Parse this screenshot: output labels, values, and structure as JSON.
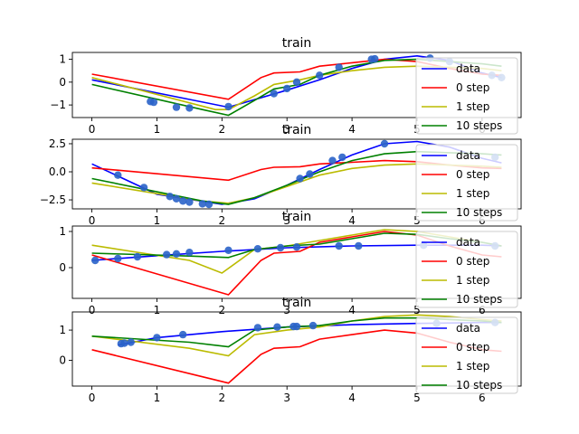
{
  "chart_data": [
    {
      "type": "line",
      "title": "train",
      "ylim": [
        -1.55,
        1.3
      ],
      "yticks": [
        -1,
        0,
        1
      ],
      "xticks": [
        0,
        1,
        2,
        3,
        4,
        5,
        6
      ],
      "xlim": [
        -0.3,
        6.6
      ],
      "legend_position": "right",
      "series": [
        {
          "name": "data",
          "kind": "line",
          "color": "#0000ff",
          "x": [
            0,
            2.1,
            3,
            3.5,
            4,
            4.5,
            5,
            5.5,
            6,
            6.3
          ],
          "y": [
            0.1,
            -1.1,
            -0.35,
            0.1,
            0.6,
            1.0,
            1.15,
            0.95,
            0.4,
            0.2
          ]
        },
        {
          "name": "0 step",
          "kind": "line",
          "color": "#ff0000",
          "x": [
            0,
            2.1,
            2.6,
            2.8,
            3.2,
            3.5,
            4,
            4.5,
            5,
            5.5,
            6,
            6.3
          ],
          "y": [
            0.35,
            -0.75,
            0.2,
            0.4,
            0.45,
            0.7,
            0.85,
            1.0,
            0.9,
            0.6,
            0.35,
            0.3
          ]
        },
        {
          "name": "1 step",
          "kind": "line",
          "color": "#bbbb00",
          "x": [
            0,
            1.9,
            2.1,
            2.5,
            2.8,
            3.2,
            3.5,
            4,
            4.5,
            5,
            5.5,
            6,
            6.3
          ],
          "y": [
            0.2,
            -1.2,
            -1.2,
            -0.6,
            -0.1,
            0.1,
            0.3,
            0.5,
            0.65,
            0.7,
            0.65,
            0.6,
            0.5
          ]
        },
        {
          "name": "10 steps",
          "kind": "line",
          "color": "#008000",
          "x": [
            0,
            1.7,
            2.1,
            2.5,
            2.8,
            3.2,
            3.5,
            4,
            4.5,
            5,
            5.5,
            6,
            6.3
          ],
          "y": [
            -0.1,
            -1.2,
            -1.45,
            -0.8,
            -0.3,
            -0.1,
            0.3,
            0.7,
            0.95,
            1.0,
            0.9,
            0.8,
            0.7
          ]
        },
        {
          "name": "data_points",
          "kind": "scatter",
          "color": "#2a63c9",
          "x": [
            0.9,
            0.95,
            1.3,
            1.5,
            2.1,
            2.8,
            3.0,
            3.15,
            3.5,
            3.8,
            4.3,
            4.35,
            5.2,
            5.5,
            6.15,
            6.3
          ],
          "y": [
            -0.85,
            -0.88,
            -1.1,
            -1.13,
            -1.07,
            -0.5,
            -0.28,
            0.0,
            0.3,
            0.65,
            1.0,
            1.02,
            1.05,
            0.9,
            0.3,
            0.2
          ]
        }
      ]
    },
    {
      "type": "line",
      "title": "train",
      "ylim": [
        -3.3,
        2.9
      ],
      "yticks": [
        -2.5,
        0.0,
        2.5
      ],
      "xticks": [
        0,
        1,
        2,
        3,
        4,
        5,
        6
      ],
      "xlim": [
        -0.3,
        6.6
      ],
      "legend_position": "right",
      "series": [
        {
          "name": "data",
          "kind": "line",
          "color": "#0000ff",
          "x": [
            0,
            1,
            2,
            2.5,
            3,
            3.5,
            4,
            4.5,
            5,
            5.5,
            6,
            6.3
          ],
          "y": [
            0.7,
            -2.0,
            -2.9,
            -2.4,
            -1.2,
            0.2,
            1.5,
            2.5,
            2.7,
            2.2,
            1.2,
            0.8
          ]
        },
        {
          "name": "0 step",
          "kind": "line",
          "color": "#ff0000",
          "x": [
            0,
            2.1,
            2.6,
            2.8,
            3.2,
            3.5,
            4,
            4.5,
            5,
            5.5,
            6,
            6.3
          ],
          "y": [
            0.35,
            -0.75,
            0.2,
            0.4,
            0.45,
            0.7,
            0.85,
            1.0,
            0.9,
            0.6,
            0.35,
            0.3
          ]
        },
        {
          "name": "1 step",
          "kind": "line",
          "color": "#bbbb00",
          "x": [
            0,
            1.7,
            2.1,
            2.5,
            3.0,
            3.5,
            4,
            4.5,
            5,
            5.5,
            6,
            6.3
          ],
          "y": [
            -1.0,
            -2.6,
            -2.8,
            -2.3,
            -1.3,
            -0.3,
            0.3,
            0.6,
            0.7,
            0.6,
            0.5,
            0.4
          ]
        },
        {
          "name": "10 steps",
          "kind": "line",
          "color": "#008000",
          "x": [
            0,
            1.7,
            2.1,
            2.5,
            3.0,
            3.5,
            4,
            4.5,
            5,
            5.5,
            6,
            6.3
          ],
          "y": [
            -0.6,
            -2.6,
            -2.9,
            -2.3,
            -1.2,
            0.0,
            1.0,
            1.6,
            1.8,
            1.7,
            1.6,
            1.5
          ]
        },
        {
          "name": "data_points",
          "kind": "scatter",
          "color": "#2a63c9",
          "x": [
            0.4,
            0.8,
            1.2,
            1.3,
            1.4,
            1.5,
            1.7,
            1.8,
            3.2,
            3.35,
            3.7,
            3.85,
            4.5,
            6.2
          ],
          "y": [
            -0.3,
            -1.4,
            -2.2,
            -2.4,
            -2.6,
            -2.7,
            -2.85,
            -2.9,
            -0.6,
            -0.2,
            1.0,
            1.3,
            2.5,
            1.3
          ]
        }
      ]
    },
    {
      "type": "line",
      "title": "train",
      "ylim": [
        -0.85,
        1.15
      ],
      "yticks": [
        0,
        1
      ],
      "xticks": [
        0,
        1,
        2,
        3,
        4,
        5,
        6
      ],
      "xlim": [
        -0.3,
        6.6
      ],
      "legend_position": "right",
      "series": [
        {
          "name": "data",
          "kind": "line",
          "color": "#0000ff",
          "x": [
            0,
            1,
            2,
            3,
            4,
            5,
            6,
            6.3
          ],
          "y": [
            0.2,
            0.33,
            0.45,
            0.55,
            0.6,
            0.62,
            0.62,
            0.6
          ]
        },
        {
          "name": "0 step",
          "kind": "line",
          "color": "#ff0000",
          "x": [
            0,
            2.1,
            2.6,
            2.8,
            3.2,
            3.5,
            4,
            4.5,
            5,
            5.5,
            6,
            6.3
          ],
          "y": [
            0.35,
            -0.75,
            0.2,
            0.4,
            0.45,
            0.7,
            0.85,
            1.0,
            0.9,
            0.6,
            0.35,
            0.3
          ]
        },
        {
          "name": "1 step",
          "kind": "line",
          "color": "#bbbb00",
          "x": [
            0,
            1.5,
            2.0,
            2.5,
            3.0,
            3.5,
            4,
            4.5,
            5,
            5.5,
            6,
            6.3
          ],
          "y": [
            0.62,
            0.2,
            -0.15,
            0.5,
            0.6,
            0.75,
            0.9,
            1.05,
            1.0,
            0.85,
            0.7,
            0.6
          ]
        },
        {
          "name": "10 steps",
          "kind": "line",
          "color": "#008000",
          "x": [
            0,
            1.5,
            2.1,
            2.5,
            3.0,
            3.5,
            4,
            4.5,
            5,
            5.5,
            6,
            6.3
          ],
          "y": [
            0.4,
            0.32,
            0.28,
            0.5,
            0.6,
            0.65,
            0.8,
            0.95,
            0.92,
            0.8,
            0.7,
            0.6
          ]
        },
        {
          "name": "data_points",
          "kind": "scatter",
          "color": "#2a63c9",
          "x": [
            0.05,
            0.4,
            0.7,
            1.15,
            1.3,
            1.5,
            2.1,
            2.55,
            2.9,
            3.15,
            3.8,
            4.1,
            5.1,
            6.2
          ],
          "y": [
            0.2,
            0.25,
            0.3,
            0.36,
            0.38,
            0.42,
            0.48,
            0.52,
            0.55,
            0.57,
            0.6,
            0.6,
            0.62,
            0.6
          ]
        }
      ]
    },
    {
      "type": "line",
      "title": "train",
      "ylim": [
        -0.85,
        1.6
      ],
      "yticks": [
        0,
        1
      ],
      "xticks": [
        0,
        1,
        2,
        3,
        4,
        5,
        6
      ],
      "xlim": [
        -0.3,
        6.6
      ],
      "legend_position": "right",
      "series": [
        {
          "name": "data",
          "kind": "line",
          "color": "#0000ff",
          "x": [
            0.4,
            1,
            2,
            3,
            4,
            5,
            6,
            6.3
          ],
          "y": [
            0.5,
            0.75,
            0.95,
            1.1,
            1.18,
            1.22,
            1.25,
            1.25
          ]
        },
        {
          "name": "0 step",
          "kind": "line",
          "color": "#ff0000",
          "x": [
            0,
            2.1,
            2.6,
            2.8,
            3.2,
            3.5,
            4,
            4.5,
            5,
            5.5,
            6,
            6.3
          ],
          "y": [
            0.35,
            -0.75,
            0.2,
            0.4,
            0.45,
            0.7,
            0.85,
            1.0,
            0.9,
            0.6,
            0.35,
            0.3
          ]
        },
        {
          "name": "1 step",
          "kind": "line",
          "color": "#bbbb00",
          "x": [
            0,
            1.5,
            2.1,
            2.5,
            3.0,
            3.5,
            4,
            4.5,
            5,
            5.5,
            6,
            6.3
          ],
          "y": [
            0.8,
            0.4,
            0.15,
            0.85,
            1.0,
            1.1,
            1.3,
            1.45,
            1.5,
            1.45,
            1.35,
            1.3
          ]
        },
        {
          "name": "10 steps",
          "kind": "line",
          "color": "#008000",
          "x": [
            0,
            1.5,
            2.1,
            2.5,
            3.0,
            3.5,
            4,
            4.5,
            5,
            5.5,
            6,
            6.3
          ],
          "y": [
            0.8,
            0.6,
            0.45,
            1.0,
            1.1,
            1.15,
            1.3,
            1.4,
            1.4,
            1.35,
            1.3,
            1.25
          ]
        },
        {
          "name": "data_points",
          "kind": "scatter",
          "color": "#2a63c9",
          "x": [
            0.45,
            0.5,
            0.6,
            1.0,
            1.4,
            2.55,
            2.85,
            3.1,
            3.15,
            3.4,
            5.3,
            6.2
          ],
          "y": [
            0.55,
            0.57,
            0.6,
            0.75,
            0.85,
            1.08,
            1.1,
            1.12,
            1.12,
            1.15,
            1.22,
            1.25
          ]
        }
      ]
    }
  ],
  "legend": {
    "entries": [
      {
        "label": "data",
        "color": "#0000ff"
      },
      {
        "label": "0 step",
        "color": "#ff0000"
      },
      {
        "label": "1 step",
        "color": "#bbbb00"
      },
      {
        "label": "10 steps",
        "color": "#008000"
      }
    ]
  }
}
